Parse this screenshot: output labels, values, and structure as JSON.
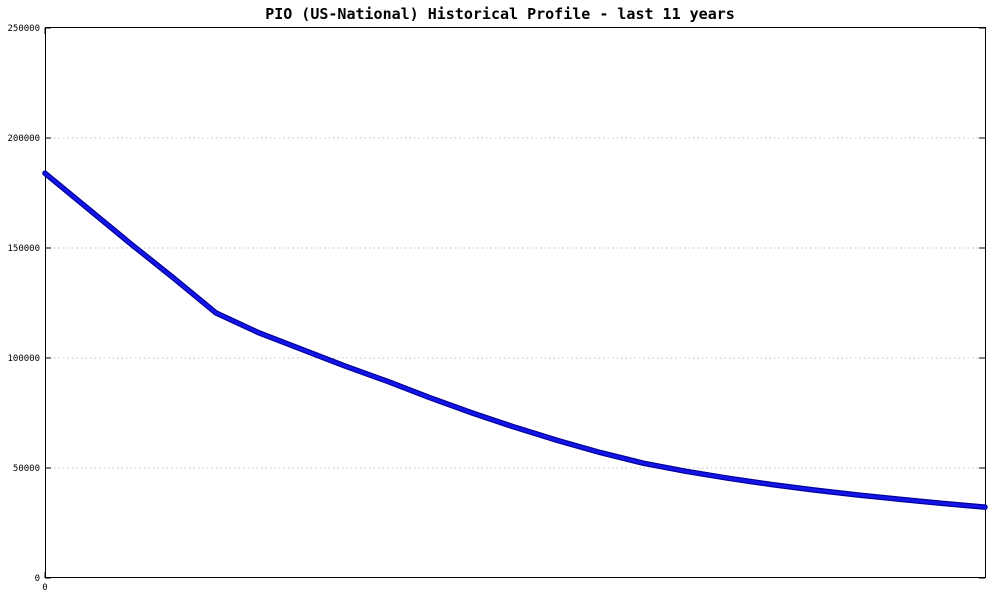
{
  "chart_data": {
    "type": "line",
    "title": "PIO (US-National) Historical Profile - last 11 years",
    "xlabel": "",
    "ylabel": "",
    "xlim": [
      0,
      11
    ],
    "ylim": [
      0,
      250000
    ],
    "x": [
      0,
      0.5,
      1,
      1.5,
      2,
      2.5,
      3,
      3.5,
      4,
      4.5,
      5,
      5.5,
      6,
      6.5,
      7,
      7.5,
      8,
      8.5,
      9,
      9.5,
      10,
      10.5,
      11
    ],
    "series": [
      {
        "name": "PIO (US-National)",
        "values": [
          184000,
          168000,
          152000,
          136500,
          120500,
          111500,
          104000,
          96500,
          89500,
          82000,
          75000,
          68500,
          62500,
          57000,
          52200,
          48500,
          45300,
          42500,
          40000,
          37800,
          35800,
          33900,
          32200
        ]
      }
    ],
    "yticks": [
      0,
      50000,
      100000,
      150000,
      200000,
      250000
    ],
    "xticks": [
      {
        "value": 0,
        "label": "0"
      }
    ],
    "grid": {
      "horizontal": true,
      "style": "dotted"
    },
    "legend_position": "none",
    "colors": {
      "line": "#1414e6",
      "line_edge": "#000099",
      "grid": "#c0c0c0",
      "frame": "#000000",
      "background": "#ffffff",
      "text": "#000000"
    }
  }
}
